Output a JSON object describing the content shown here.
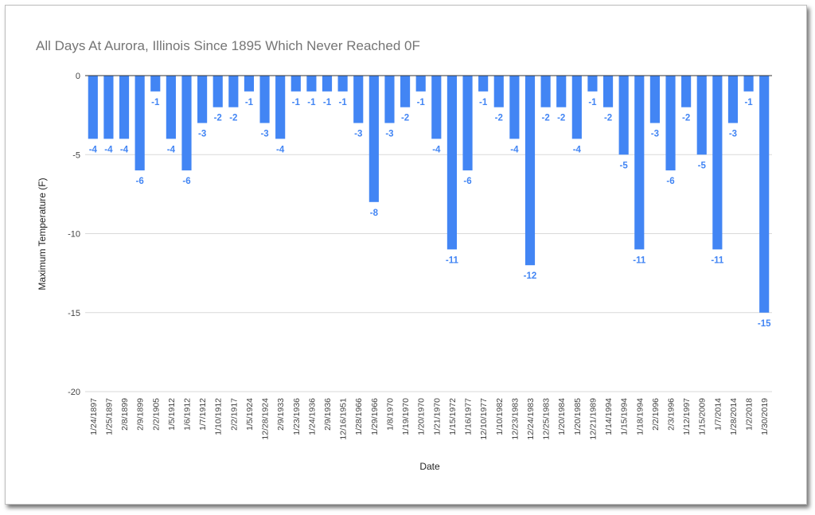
{
  "chart_data": {
    "type": "bar",
    "title": "All Days At Aurora, Illinois Since 1895 Which Never Reached 0F",
    "xlabel": "Date",
    "ylabel": "Maximum Temperature  (F)",
    "ylim": [
      -20,
      0
    ],
    "yticks": [
      "0",
      "-5",
      "-10",
      "-15",
      "-20"
    ],
    "grid": true,
    "legend": "none",
    "bar_color": "#4285f4",
    "categories": [
      "1/24/1897",
      "1/25/1897",
      "2/8/1899",
      "2/9/1899",
      "2/2/1905",
      "1/5/1912",
      "1/6/1912",
      "1/7/1912",
      "1/10/1912",
      "2/2/1917",
      "1/5/1924",
      "12/28/1924",
      "2/9/1933",
      "1/23/1936",
      "1/24/1936",
      "2/9/1936",
      "12/16/1951",
      "1/28/1966",
      "1/29/1966",
      "1/8/1970",
      "1/19/1970",
      "1/20/1970",
      "1/21/1970",
      "1/15/1972",
      "1/16/1977",
      "12/10/1977",
      "1/10/1982",
      "12/23/1983",
      "12/24/1983",
      "12/25/1983",
      "1/20/1984",
      "1/20/1985",
      "12/21/1989",
      "1/14/1994",
      "1/15/1994",
      "1/18/1994",
      "2/2/1996",
      "2/3/1996",
      "1/12/1997",
      "1/15/2009",
      "1/7/2014",
      "1/28/2014",
      "1/2/2018",
      "1/30/2019"
    ],
    "values": [
      -4,
      -4,
      -4,
      -6,
      -1,
      -4,
      -6,
      -3,
      -2,
      -2,
      -1,
      -3,
      -4,
      -1,
      -1,
      -1,
      -1,
      -3,
      -8,
      -3,
      -2,
      -1,
      -4,
      -11,
      -6,
      -1,
      -2,
      -4,
      -12,
      -2,
      -2,
      -4,
      -1,
      -2,
      -5,
      -11,
      -3,
      -6,
      -2,
      -5,
      -11,
      -3,
      -1,
      -15
    ]
  }
}
